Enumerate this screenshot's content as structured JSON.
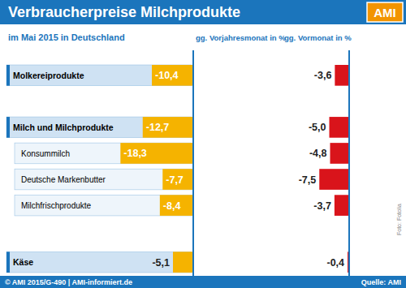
{
  "title": "Verbraucherpreise Milchprodukte",
  "logo": "AMI",
  "subtitle": "im Mai 2015 in Deutschland",
  "footer": "© AMI 2015/G-490 | AMI-informiert.de",
  "source": "Quelle: AMI",
  "photo_credit": "Foto: Fotolia",
  "chart_data": [
    {
      "type": "bar",
      "title": "gg. Vorjahresmonat in %",
      "categories": [
        "Molkereiprodukte",
        "Milch und Milchprodukte",
        "Konsummilch",
        "Deutsche Markenbutter",
        "Milchfrischprodukte",
        "Käse"
      ],
      "values": [
        -10.4,
        -12.7,
        -18.3,
        -7.7,
        -8.4,
        -5.1
      ],
      "value_labels": [
        "-10,4",
        "-12,7",
        "-18,3",
        "-7,7",
        "-8,4",
        "-5,1"
      ],
      "color": "#f5b300",
      "orientation": "horizontal",
      "data_labels": true,
      "tick_labels": "y",
      "xlim": [
        -20,
        0
      ]
    },
    {
      "type": "bar",
      "title": "gg. Vormonat in %",
      "categories": [
        "Molkereiprodukte",
        "Milch und Milchprodukte",
        "Konsummilch",
        "Deutsche Markenbutter",
        "Milchfrischprodukte",
        "Käse"
      ],
      "values": [
        -3.6,
        -5.0,
        -4.8,
        -7.5,
        -3.7,
        -0.4
      ],
      "value_labels": [
        "-3,6",
        "-5,0",
        "-4,8",
        "-7,5",
        "-3,7",
        "-0,4"
      ],
      "color": "#d9141b",
      "orientation": "horizontal",
      "data_labels": true,
      "tick_labels": false,
      "xlim": [
        -20,
        0
      ]
    }
  ]
}
